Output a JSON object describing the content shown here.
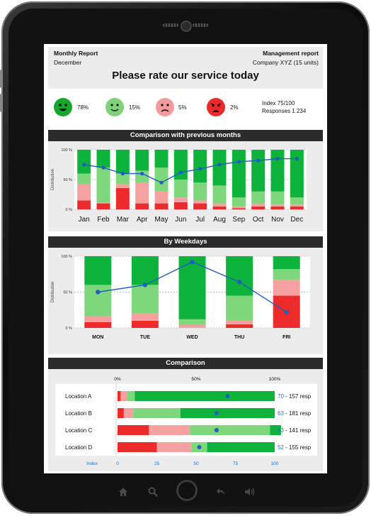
{
  "header": {
    "report_title": "Monthly Report",
    "period": "December",
    "report_type": "Management report",
    "company": "Company XYZ (15 units)",
    "question": "Please rate our service today"
  },
  "ratings": [
    {
      "label": "78%",
      "color": "#16a82c",
      "face": "very-happy"
    },
    {
      "label": "15%",
      "color": "#7fd17a",
      "face": "happy"
    },
    {
      "label": "5%",
      "color": "#f59a9a",
      "face": "sad"
    },
    {
      "label": "2%",
      "color": "#ee2a2a",
      "face": "very-sad"
    }
  ],
  "summary": {
    "index": "Index 75/100",
    "responses": "Responses 1 234"
  },
  "colors": {
    "very_good": "#0db33a",
    "good": "#7ed77a",
    "bad": "#f6a1a1",
    "very_bad": "#ee2b2b",
    "line": "#1f5fbf",
    "index_text": "#1f6fd1"
  },
  "months_panel": {
    "title": "Comparison with previous months",
    "ylabel": "Distribution",
    "yticks": [
      "100 %",
      "50 %",
      "0 %"
    ]
  },
  "weekdays_panel": {
    "title": "By Weekdays",
    "ylabel": "Distribution",
    "yticks": [
      "100 %",
      "50 %",
      "0 %"
    ]
  },
  "locations_panel": {
    "title": "Comparison",
    "top_ticks": [
      "0%",
      "50%",
      "100%"
    ],
    "index_label": "Index",
    "bottom_ticks": [
      "0",
      "25",
      "50",
      "75",
      "100"
    ]
  },
  "chart_data": [
    {
      "type": "bar",
      "title": "Comparison with previous months",
      "ylabel": "Distribution",
      "ylim": [
        0,
        100
      ],
      "categories": [
        "Jan",
        "Feb",
        "Mar",
        "Apr",
        "May",
        "Jun",
        "Jul",
        "Aug",
        "Sep",
        "Oct",
        "Nov",
        "Dec"
      ],
      "stacked": true,
      "series": [
        {
          "values": [
            15,
            10,
            36,
            10,
            10,
            12,
            10,
            5,
            2,
            5,
            5,
            5
          ]
        },
        {
          "values": [
            27,
            2,
            6,
            35,
            20,
            8,
            5,
            5,
            3,
            5,
            3,
            3
          ]
        },
        {
          "values": [
            18,
            58,
            18,
            20,
            40,
            30,
            30,
            30,
            15,
            20,
            22,
            12
          ]
        },
        {
          "values": [
            40,
            30,
            40,
            35,
            30,
            50,
            55,
            60,
            80,
            70,
            70,
            80
          ]
        }
      ],
      "line_values": [
        75,
        70,
        60,
        60,
        45,
        62,
        68,
        75,
        80,
        82,
        85,
        85
      ]
    },
    {
      "type": "bar",
      "title": "By Weekdays",
      "ylabel": "Distribution",
      "ylim": [
        0,
        100
      ],
      "categories": [
        "MON",
        "TUE",
        "WED",
        "THU",
        "FRI"
      ],
      "stacked": true,
      "series": [
        {
          "values": [
            8,
            10,
            0,
            5,
            45
          ]
        },
        {
          "values": [
            8,
            10,
            4,
            5,
            22
          ]
        },
        {
          "values": [
            44,
            40,
            8,
            35,
            15
          ]
        },
        {
          "values": [
            40,
            40,
            88,
            55,
            18
          ]
        }
      ],
      "line_values": [
        50,
        60,
        92,
        64,
        22
      ]
    },
    {
      "type": "bar",
      "title": "Comparison",
      "orientation": "horizontal",
      "stacked": true,
      "categories": [
        "Location A",
        "Location B",
        "Location C",
        "Location D"
      ],
      "series": [
        {
          "values": [
            2,
            4,
            20,
            25
          ]
        },
        {
          "values": [
            4,
            6,
            26,
            22
          ]
        },
        {
          "values": [
            5,
            30,
            51,
            10
          ]
        },
        {
          "values": [
            89,
            60,
            7,
            43
          ]
        }
      ],
      "index_values": [
        70,
        63,
        63,
        52
      ],
      "index_labels": [
        "70",
        "63",
        "63",
        "52"
      ],
      "resp_labels": [
        "- 157 resp",
        "- 181 resp",
        "- 141 resp",
        "- 155 resp"
      ]
    }
  ]
}
